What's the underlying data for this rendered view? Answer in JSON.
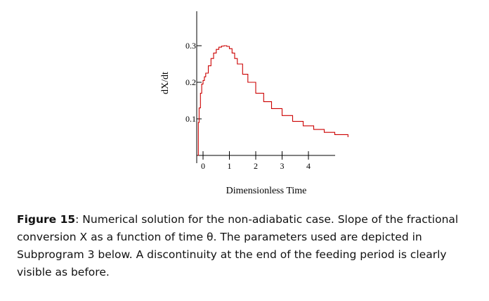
{
  "chart_data": {
    "type": "line",
    "title": "",
    "xlabel": "Dimensionless Time",
    "ylabel": "dX/dt",
    "xlim": [
      -0.2,
      5.5
    ],
    "ylim": [
      0.0,
      0.36
    ],
    "x_ticks": [
      0,
      1,
      2,
      3,
      4
    ],
    "y_ticks": [
      0.1,
      0.2,
      0.3
    ],
    "x_tick_labels": [
      "0",
      "1",
      "2",
      "3",
      "4"
    ],
    "y_tick_labels": [
      "0.1",
      "0.2",
      "0.3"
    ],
    "grid": false,
    "series": [
      {
        "color": "#cc0000",
        "x": [
          -0.2,
          -0.18,
          -0.15,
          -0.1,
          -0.05,
          0.0,
          0.05,
          0.1,
          0.2,
          0.3,
          0.4,
          0.5,
          0.6,
          0.7,
          0.8,
          0.9,
          1.0,
          1.1,
          1.2,
          1.3,
          1.5,
          1.7,
          2.0,
          2.3,
          2.6,
          3.0,
          3.4,
          3.8,
          4.2,
          4.6,
          5.0,
          5.5
        ],
        "y": [
          0.0,
          0.09,
          0.13,
          0.17,
          0.195,
          0.205,
          0.215,
          0.225,
          0.245,
          0.265,
          0.28,
          0.29,
          0.296,
          0.299,
          0.3,
          0.298,
          0.292,
          0.28,
          0.265,
          0.25,
          0.222,
          0.2,
          0.17,
          0.147,
          0.128,
          0.109,
          0.093,
          0.081,
          0.071,
          0.063,
          0.057,
          0.05
        ]
      }
    ]
  },
  "caption": {
    "label": "Figure 15",
    "text": ": Numerical solution for the non-adiabatic case. Slope of the fractional conversion X as a function of time θ. The parameters used are depicted in Subprogram 3 below.  A discontinuity at the end of the feeding period is clearly visible as before."
  }
}
